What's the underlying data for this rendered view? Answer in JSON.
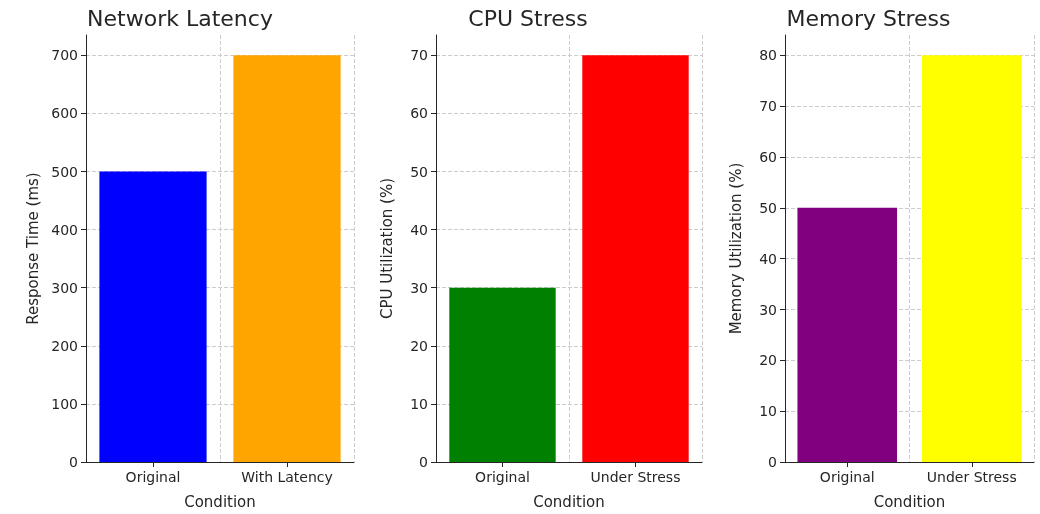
{
  "chart_data": [
    {
      "type": "bar",
      "title": "Network Latency",
      "xlabel": "Condition",
      "ylabel": "Response Time (ms)",
      "categories": [
        "Original",
        "With Latency"
      ],
      "values": [
        500,
        700
      ],
      "colors": [
        "#0000ff",
        "#ffa500"
      ],
      "ylim": [
        0,
        735
      ],
      "yticks": [
        0,
        100,
        200,
        300,
        400,
        500,
        600,
        700
      ],
      "grid": true
    },
    {
      "type": "bar",
      "title": "CPU Stress",
      "xlabel": "Condition",
      "ylabel": "CPU Utilization (%)",
      "categories": [
        "Original",
        "Under Stress"
      ],
      "values": [
        30,
        70
      ],
      "colors": [
        "#008000",
        "#ff0000"
      ],
      "ylim": [
        0,
        73.5
      ],
      "yticks": [
        0,
        10,
        20,
        30,
        40,
        50,
        60,
        70
      ],
      "grid": true
    },
    {
      "type": "bar",
      "title": "Memory Stress",
      "xlabel": "Condition",
      "ylabel": "Memory Utilization (%)",
      "categories": [
        "Original",
        "Under Stress"
      ],
      "values": [
        50,
        80
      ],
      "colors": [
        "#800080",
        "#ffff00"
      ],
      "ylim": [
        0,
        84
      ],
      "yticks": [
        0,
        10,
        20,
        30,
        40,
        50,
        60,
        70,
        80
      ],
      "grid": true
    }
  ]
}
